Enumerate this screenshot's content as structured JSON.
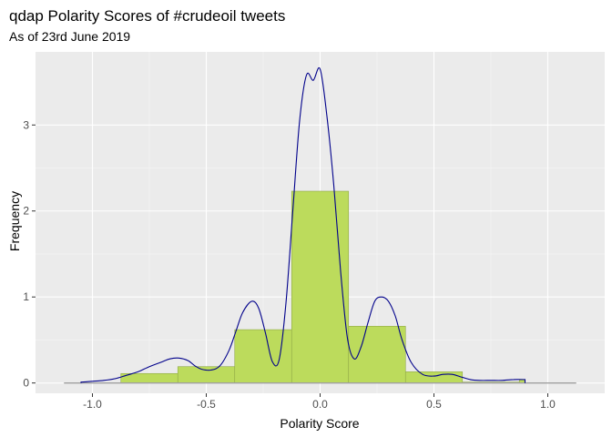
{
  "chart_data": {
    "type": "histogram",
    "title": "qdap Polarity Scores of #crudeoil tweets",
    "subtitle": "As of 23rd June 2019",
    "xlabel": "Polarity Score",
    "ylabel": "Frequency",
    "xlim": [
      -1.25,
      1.25
    ],
    "ylim": [
      -0.12,
      3.85
    ],
    "x_ticks": [
      -1.0,
      -0.5,
      0.0,
      0.5,
      1.0
    ],
    "x_tick_labels": [
      "-1.0",
      "-0.5",
      "0.0",
      "0.5",
      "1.0"
    ],
    "y_ticks": [
      0,
      1,
      2,
      3
    ],
    "y_tick_labels": [
      "0",
      "1",
      "2",
      "3"
    ],
    "grid": true,
    "legend": "none",
    "histogram": {
      "bin_width": 0.25,
      "bins": [
        {
          "x0": -0.875,
          "x1": -0.625,
          "value": 0.11
        },
        {
          "x0": -0.625,
          "x1": -0.375,
          "value": 0.19
        },
        {
          "x0": -0.375,
          "x1": -0.125,
          "value": 0.62
        },
        {
          "x0": -0.125,
          "x1": 0.125,
          "value": 2.23
        },
        {
          "x0": 0.125,
          "x1": 0.375,
          "value": 0.66
        },
        {
          "x0": 0.375,
          "x1": 0.625,
          "value": 0.13
        },
        {
          "x0": 0.625,
          "x1": 0.875,
          "value": 0.01
        },
        {
          "x0": 0.875,
          "x1": 0.9,
          "value": 0.04
        }
      ],
      "fill_color": "#bcdb5c",
      "border_color": "#8fa846"
    },
    "density": {
      "x": [
        -1.05,
        -1.0,
        -0.95,
        -0.9,
        -0.85,
        -0.8,
        -0.75,
        -0.7,
        -0.66,
        -0.62,
        -0.58,
        -0.55,
        -0.52,
        -0.48,
        -0.44,
        -0.4,
        -0.37,
        -0.34,
        -0.3,
        -0.27,
        -0.24,
        -0.21,
        -0.18,
        -0.15,
        -0.12,
        -0.09,
        -0.06,
        -0.03,
        0.0,
        0.03,
        0.06,
        0.09,
        0.12,
        0.15,
        0.18,
        0.21,
        0.24,
        0.27,
        0.3,
        0.33,
        0.36,
        0.4,
        0.45,
        0.5,
        0.54,
        0.58,
        0.62,
        0.66,
        0.7,
        0.75,
        0.8,
        0.85,
        0.9
      ],
      "y": [
        0.01,
        0.02,
        0.03,
        0.05,
        0.09,
        0.13,
        0.19,
        0.24,
        0.28,
        0.29,
        0.26,
        0.2,
        0.16,
        0.15,
        0.2,
        0.38,
        0.6,
        0.82,
        0.95,
        0.87,
        0.58,
        0.25,
        0.27,
        0.93,
        2.0,
        3.05,
        3.58,
        3.52,
        3.65,
        3.1,
        2.3,
        1.3,
        0.52,
        0.28,
        0.42,
        0.7,
        0.95,
        1.0,
        0.95,
        0.78,
        0.5,
        0.24,
        0.1,
        0.08,
        0.1,
        0.1,
        0.07,
        0.04,
        0.03,
        0.03,
        0.03,
        0.04,
        0.04
      ],
      "color": "#00008b"
    },
    "baseline": {
      "x0": -1.125,
      "x1": 1.125,
      "color": "#a0a0a0"
    },
    "colors": {
      "panel_background": "#ebebeb",
      "grid_major": "#ffffff",
      "grid_minor": "#f5f5f5"
    }
  }
}
